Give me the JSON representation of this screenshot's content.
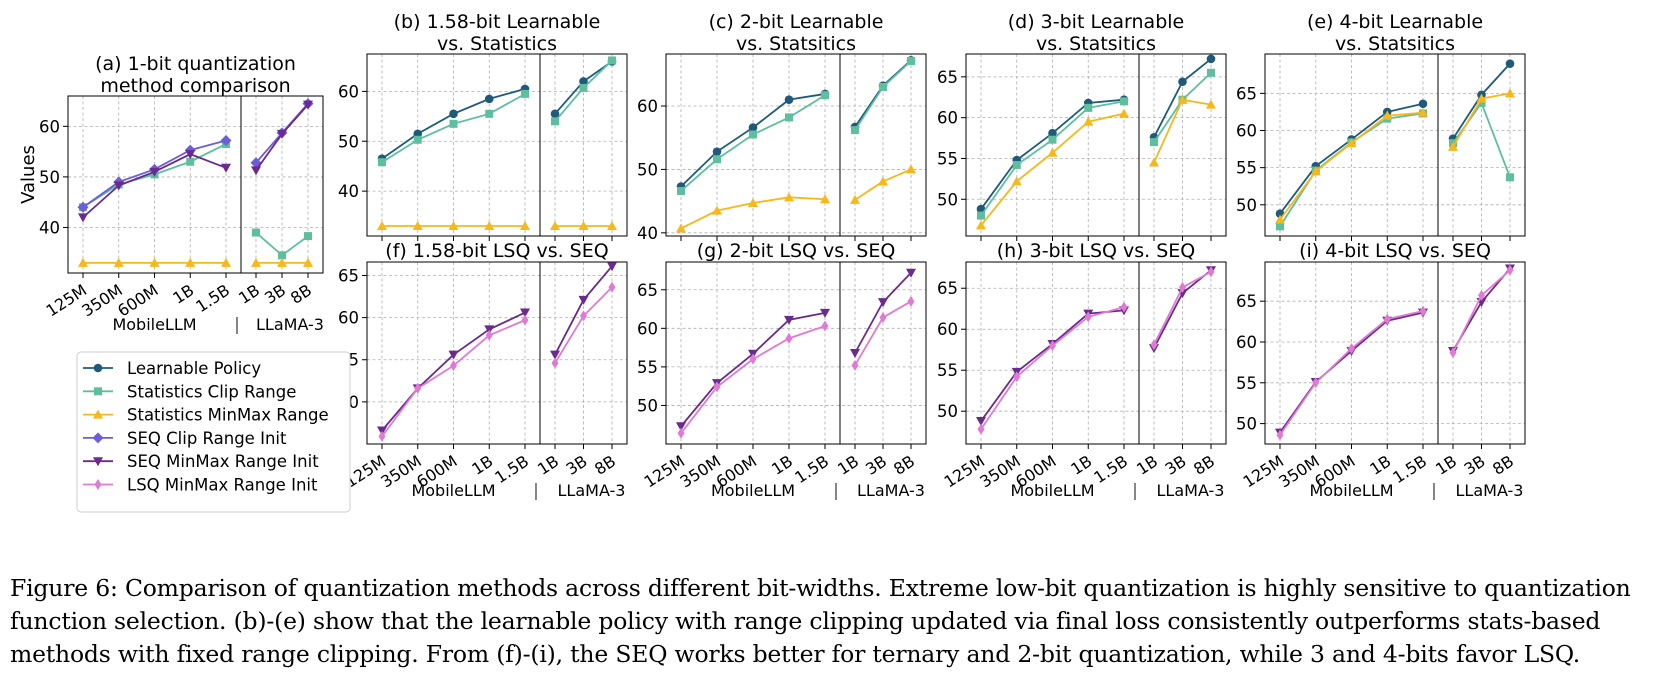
{
  "colors": {
    "learnable": "#1f5a7a",
    "stats_clip": "#5dbf9e",
    "stats_minmax": "#f6b81a",
    "seq_clip": "#6c5ed9",
    "seq_minmax": "#6a2a8e",
    "lsq_minmax": "#e07ad3"
  },
  "legend": [
    {
      "key": "learnable",
      "label": "Learnable Policy",
      "marker": "circle"
    },
    {
      "key": "stats_clip",
      "label": "Statistics Clip Range",
      "marker": "square"
    },
    {
      "key": "stats_minmax",
      "label": "Statistics MinMax Range",
      "marker": "triangle-up"
    },
    {
      "key": "seq_clip",
      "label": "SEQ Clip Range Init",
      "marker": "diamond"
    },
    {
      "key": "seq_minmax",
      "label": "SEQ MinMax Range Init",
      "marker": "triangle-down"
    },
    {
      "key": "lsq_minmax",
      "label": "LSQ MinMax Range Init",
      "marker": "thin-diamond"
    }
  ],
  "group_labels": {
    "left": "MobileLLM",
    "right": "LLaMA-3",
    "separator": "|"
  },
  "caption": "Figure 6: Comparison of quantization methods across different bit-widths. Extreme low-bit quantization is highly sensitive to quantization function selection. (b)-(e) show that the learnable policy with range clipping updated via final loss consistently outperforms stats-based methods with fixed range clipping. From (f)-(i), the SEQ works better for ternary and 2-bit quantization, while 3 and 4-bits favor LSQ.",
  "chart_data": [
    {
      "id": "a",
      "type": "line",
      "title": [
        "(a) 1-bit quantization",
        "method comparison"
      ],
      "ylabel": "Values",
      "ylim": [
        31,
        66
      ],
      "yticks": [
        40,
        50,
        60
      ],
      "left_categories": [
        "125M",
        "350M",
        "600M",
        "1B",
        "1.5B"
      ],
      "right_categories": [
        "1B",
        "3B",
        "8B"
      ],
      "series": [
        {
          "key": "stats_clip",
          "left": [
            44,
            48.5,
            50.5,
            53,
            56.5
          ],
          "right": [
            39,
            34.5,
            38.3
          ]
        },
        {
          "key": "stats_minmax",
          "left": [
            33,
            33,
            33,
            33,
            33
          ],
          "right": [
            33,
            33,
            33
          ]
        },
        {
          "key": "seq_clip",
          "left": [
            44,
            49,
            51.5,
            55.3,
            57.2
          ],
          "right": [
            52.8,
            58.7,
            64.5
          ]
        },
        {
          "key": "seq_minmax",
          "left": [
            42,
            48.3,
            51,
            54.5,
            51.8
          ],
          "right": [
            51.3,
            58.5,
            64.3
          ]
        }
      ]
    },
    {
      "id": "b",
      "type": "line",
      "title": [
        "(b) 1.58-bit  Learnable",
        "vs. Statistics"
      ],
      "ylim": [
        31,
        67.5
      ],
      "yticks": [
        40,
        50,
        60
      ],
      "left_categories": [
        "125M",
        "350M",
        "600M",
        "1B",
        "1.5B"
      ],
      "right_categories": [
        "1B",
        "3B",
        "8B"
      ],
      "series": [
        {
          "key": "learnable",
          "left": [
            46.5,
            51.5,
            55.5,
            58.5,
            60.5
          ],
          "right": [
            55.5,
            62,
            66
          ]
        },
        {
          "key": "stats_clip",
          "left": [
            45.8,
            50.3,
            53.5,
            55.5,
            59.5
          ],
          "right": [
            54,
            60.7,
            66.2
          ]
        },
        {
          "key": "stats_minmax",
          "left": [
            33,
            33,
            33,
            33,
            33
          ],
          "right": [
            33,
            33,
            33
          ]
        }
      ]
    },
    {
      "id": "c",
      "type": "line",
      "title": [
        "(c) 2-bit  Learnable",
        "vs. Statsitics"
      ],
      "ylim": [
        39.5,
        68.2
      ],
      "yticks": [
        40,
        50,
        60
      ],
      "left_categories": [
        "125M",
        "350M",
        "600M",
        "1B",
        "1.5B"
      ],
      "right_categories": [
        "1B",
        "3B",
        "8B"
      ],
      "series": [
        {
          "key": "learnable",
          "left": [
            47.3,
            52.8,
            56.6,
            61,
            61.9
          ],
          "right": [
            56.7,
            63.2,
            67.2
          ]
        },
        {
          "key": "stats_clip",
          "left": [
            46.6,
            51.6,
            55.5,
            58.2,
            61.7
          ],
          "right": [
            56.2,
            63,
            67.1
          ]
        },
        {
          "key": "stats_minmax",
          "left": [
            40.7,
            43.5,
            44.7,
            45.6,
            45.3
          ],
          "right": [
            45.2,
            48.1,
            50
          ]
        }
      ]
    },
    {
      "id": "d",
      "type": "line",
      "title": [
        "(d) 3-bit  Learnable",
        "vs. Statsitics"
      ],
      "ylim": [
        45.5,
        67.8
      ],
      "yticks": [
        50,
        55,
        60,
        65
      ],
      "left_categories": [
        "125M",
        "350M",
        "600M",
        "1B",
        "1.5B"
      ],
      "right_categories": [
        "1B",
        "3B",
        "8B"
      ],
      "series": [
        {
          "key": "learnable",
          "left": [
            48.8,
            54.8,
            58.1,
            61.8,
            62.2
          ],
          "right": [
            57.6,
            64.4,
            67.2
          ]
        },
        {
          "key": "stats_clip",
          "left": [
            48,
            54.2,
            57.3,
            61.2,
            62
          ],
          "right": [
            57,
            62.2,
            65.5
          ]
        },
        {
          "key": "stats_minmax",
          "left": [
            46.8,
            52.2,
            55.7,
            59.5,
            60.5
          ],
          "right": [
            54.5,
            62.2,
            61.6
          ]
        }
      ]
    },
    {
      "id": "e",
      "type": "line",
      "title": [
        "(e) 4-bit  Learnable",
        "vs. Statsitics"
      ],
      "ylim": [
        45.8,
        70.3
      ],
      "yticks": [
        50,
        55,
        60,
        65
      ],
      "left_categories": [
        "125M",
        "350M",
        "600M",
        "1B",
        "1.5B"
      ],
      "right_categories": [
        "1B",
        "3B",
        "8B"
      ],
      "series": [
        {
          "key": "learnable",
          "left": [
            48.8,
            55.2,
            58.8,
            62.5,
            63.6
          ],
          "right": [
            58.9,
            64.8,
            69
          ]
        },
        {
          "key": "stats_clip",
          "left": [
            47.1,
            54.6,
            58.4,
            61.6,
            62.3
          ],
          "right": [
            58.3,
            63.7,
            53.7
          ]
        },
        {
          "key": "stats_minmax",
          "left": [
            48,
            54.5,
            58.3,
            62,
            62.4
          ],
          "right": [
            57.8,
            64.3,
            65
          ]
        }
      ]
    },
    {
      "id": "f",
      "type": "line",
      "title": [
        "(f) 1.58-bit  LSQ  vs. SEQ"
      ],
      "ylim": [
        45,
        66.6
      ],
      "yticks": [
        50,
        55,
        60,
        65
      ],
      "left_categories": [
        "125M",
        "350M",
        "600M",
        "1B",
        "1.5B"
      ],
      "right_categories": [
        "1B",
        "3B",
        "8B"
      ],
      "series": [
        {
          "key": "seq_minmax",
          "left": [
            46.6,
            51.6,
            55.6,
            58.6,
            60.6
          ],
          "right": [
            55.6,
            62.1,
            66.1
          ]
        },
        {
          "key": "lsq_minmax",
          "left": [
            45.9,
            51.6,
            54.3,
            57.9,
            59.7
          ],
          "right": [
            54.6,
            60.2,
            63.6
          ]
        }
      ]
    },
    {
      "id": "g",
      "type": "line",
      "title": [
        "(g) 2-bit  LSQ  vs. SEQ"
      ],
      "ylim": [
        45,
        68.6
      ],
      "yticks": [
        50,
        55,
        60,
        65
      ],
      "left_categories": [
        "125M",
        "350M",
        "600M",
        "1B",
        "1.5B"
      ],
      "right_categories": [
        "1B",
        "3B",
        "8B"
      ],
      "series": [
        {
          "key": "seq_minmax",
          "left": [
            47.3,
            52.9,
            56.7,
            61.1,
            62
          ],
          "right": [
            56.8,
            63.4,
            67.2
          ]
        },
        {
          "key": "lsq_minmax",
          "left": [
            46.4,
            52.4,
            56,
            58.7,
            60.3
          ],
          "right": [
            55.2,
            61.4,
            63.5
          ]
        }
      ]
    },
    {
      "id": "h",
      "type": "line",
      "title": [
        "(h) 3-bit  LSQ  vs. SEQ"
      ],
      "ylim": [
        46,
        68.2
      ],
      "yticks": [
        50,
        55,
        60,
        65
      ],
      "left_categories": [
        "125M",
        "350M",
        "600M",
        "1B",
        "1.5B"
      ],
      "right_categories": [
        "1B",
        "3B",
        "8B"
      ],
      "series": [
        {
          "key": "seq_minmax",
          "left": [
            48.8,
            54.8,
            58.2,
            61.9,
            62.3
          ],
          "right": [
            57.7,
            64.4,
            67.2
          ]
        },
        {
          "key": "lsq_minmax",
          "left": [
            47.8,
            54.2,
            58,
            61.5,
            62.7
          ],
          "right": [
            58.1,
            65.1,
            67
          ]
        }
      ]
    },
    {
      "id": "i",
      "type": "line",
      "title": [
        "(i) 4-bit  LSQ  vs. SEQ"
      ],
      "ylim": [
        47.5,
        69.8
      ],
      "yticks": [
        50,
        55,
        60,
        65
      ],
      "left_categories": [
        "125M",
        "350M",
        "600M",
        "1B",
        "1.5B"
      ],
      "right_categories": [
        "1B",
        "3B",
        "8B"
      ],
      "series": [
        {
          "key": "seq_minmax",
          "left": [
            48.9,
            55.1,
            58.9,
            62.6,
            63.6
          ],
          "right": [
            58.9,
            64.9,
            69
          ]
        },
        {
          "key": "lsq_minmax",
          "left": [
            48.6,
            55,
            59.2,
            62.8,
            63.8
          ],
          "right": [
            58.7,
            65.7,
            68.8
          ]
        }
      ]
    }
  ]
}
